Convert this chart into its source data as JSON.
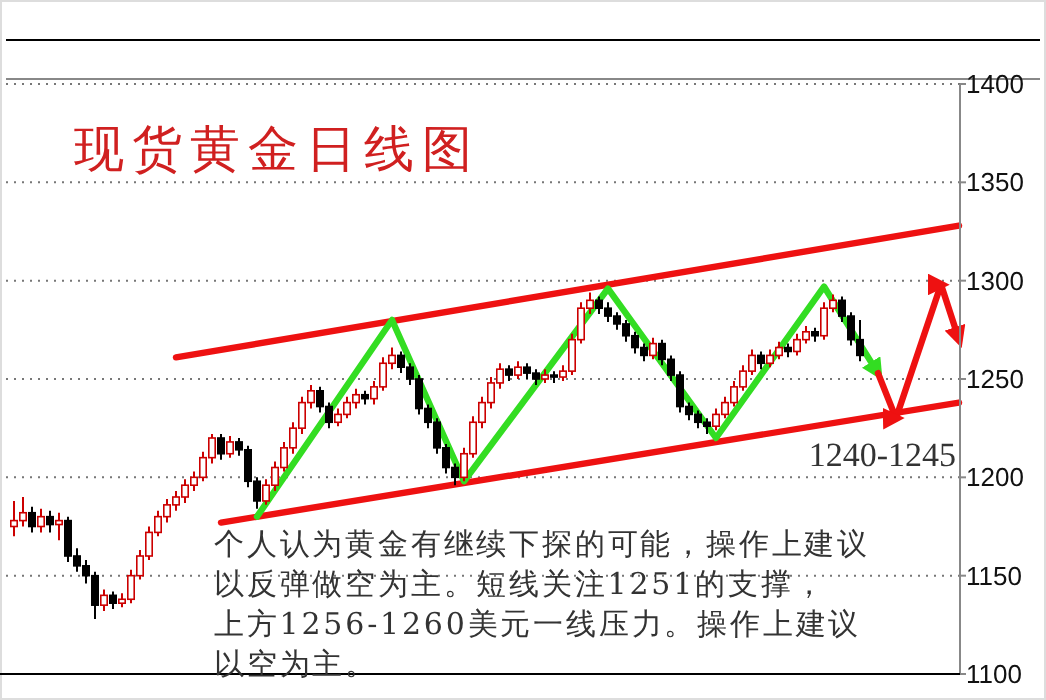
{
  "chart_data": {
    "type": "candlestick",
    "title": "现货黄金日线图",
    "annotations": [
      "1240-1245",
      "个人认为黄金有继续下探的可能，操作上建议",
      "以反弹做空为主。短线关注1251的支撑，",
      "上方1256-1260美元一线压力。操作上建议",
      "以空为主。"
    ],
    "categories": [
      null,
      null,
      null,
      null,
      null,
      null,
      null,
      null,
      null,
      null,
      null,
      null,
      null,
      null,
      null,
      null,
      null,
      null,
      null,
      null,
      null,
      null,
      null,
      null,
      null,
      null,
      null,
      null,
      null,
      null,
      null,
      null,
      null,
      null,
      null,
      null,
      null,
      null,
      null,
      null,
      null,
      null,
      null,
      null,
      null,
      null,
      null,
      null,
      null,
      null,
      null,
      null,
      null,
      null,
      null,
      null,
      null,
      null,
      null,
      null,
      null,
      null,
      null,
      null,
      null,
      null,
      null,
      null,
      null,
      null,
      null,
      null,
      null,
      null,
      null,
      null,
      null,
      null,
      null,
      null,
      null,
      null,
      null,
      null,
      null,
      null,
      null,
      null,
      null,
      null,
      null,
      null,
      null,
      null,
      null,
      null,
      null,
      null,
      null,
      null,
      null,
      null,
      null,
      null,
      null,
      null
    ],
    "ohlc": [
      [
        1175,
        1188,
        1170,
        1178
      ],
      [
        1178,
        1190,
        1175,
        1182
      ],
      [
        1182,
        1185,
        1172,
        1175
      ],
      [
        1175,
        1184,
        1172,
        1180
      ],
      [
        1180,
        1183,
        1172,
        1176
      ],
      [
        1176,
        1182,
        1168,
        1178
      ],
      [
        1178,
        1180,
        1157,
        1160
      ],
      [
        1160,
        1164,
        1152,
        1155
      ],
      [
        1155,
        1158,
        1146,
        1150
      ],
      [
        1150,
        1152,
        1128,
        1135
      ],
      [
        1135,
        1143,
        1132,
        1140
      ],
      [
        1140,
        1142,
        1133,
        1136
      ],
      [
        1136,
        1141,
        1134,
        1138
      ],
      [
        1138,
        1153,
        1136,
        1150
      ],
      [
        1150,
        1163,
        1148,
        1160
      ],
      [
        1160,
        1175,
        1158,
        1172
      ],
      [
        1172,
        1183,
        1170,
        1180
      ],
      [
        1180,
        1189,
        1177,
        1186
      ],
      [
        1186,
        1193,
        1183,
        1190
      ],
      [
        1190,
        1199,
        1187,
        1196
      ],
      [
        1196,
        1203,
        1193,
        1200
      ],
      [
        1200,
        1213,
        1198,
        1210
      ],
      [
        1210,
        1222,
        1207,
        1220
      ],
      [
        1220,
        1222,
        1209,
        1212
      ],
      [
        1212,
        1221,
        1210,
        1218
      ],
      [
        1218,
        1220,
        1211,
        1214
      ],
      [
        1214,
        1216,
        1195,
        1198
      ],
      [
        1198,
        1200,
        1184,
        1188
      ],
      [
        1188,
        1199,
        1186,
        1196
      ],
      [
        1196,
        1208,
        1193,
        1205
      ],
      [
        1205,
        1218,
        1203,
        1215
      ],
      [
        1215,
        1228,
        1212,
        1225
      ],
      [
        1225,
        1241,
        1222,
        1238
      ],
      [
        1238,
        1247,
        1235,
        1244
      ],
      [
        1244,
        1246,
        1233,
        1236
      ],
      [
        1236,
        1238,
        1225,
        1228
      ],
      [
        1228,
        1235,
        1226,
        1232
      ],
      [
        1232,
        1241,
        1230,
        1238
      ],
      [
        1238,
        1245,
        1235,
        1242
      ],
      [
        1242,
        1244,
        1237,
        1240
      ],
      [
        1240,
        1249,
        1237,
        1246
      ],
      [
        1246,
        1261,
        1244,
        1258
      ],
      [
        1258,
        1266,
        1255,
        1262
      ],
      [
        1262,
        1264,
        1253,
        1256
      ],
      [
        1256,
        1258,
        1247,
        1250
      ],
      [
        1250,
        1252,
        1232,
        1235
      ],
      [
        1235,
        1237,
        1225,
        1228
      ],
      [
        1228,
        1230,
        1212,
        1215
      ],
      [
        1215,
        1217,
        1202,
        1205
      ],
      [
        1205,
        1207,
        1196,
        1200
      ],
      [
        1200,
        1215,
        1198,
        1212
      ],
      [
        1212,
        1231,
        1210,
        1228
      ],
      [
        1228,
        1241,
        1225,
        1238
      ],
      [
        1238,
        1251,
        1235,
        1248
      ],
      [
        1248,
        1258,
        1245,
        1255
      ],
      [
        1255,
        1257,
        1249,
        1252
      ],
      [
        1252,
        1259,
        1250,
        1256
      ],
      [
        1256,
        1258,
        1250,
        1253
      ],
      [
        1253,
        1255,
        1247,
        1250
      ],
      [
        1250,
        1255,
        1248,
        1252
      ],
      [
        1252,
        1254,
        1248,
        1251
      ],
      [
        1251,
        1257,
        1249,
        1254
      ],
      [
        1254,
        1273,
        1252,
        1270
      ],
      [
        1270,
        1289,
        1268,
        1286
      ],
      [
        1286,
        1294,
        1283,
        1290
      ],
      [
        1290,
        1292,
        1283,
        1286
      ],
      [
        1286,
        1289,
        1279,
        1282
      ],
      [
        1282,
        1284,
        1275,
        1278
      ],
      [
        1278,
        1280,
        1269,
        1272
      ],
      [
        1272,
        1274,
        1263,
        1266
      ],
      [
        1266,
        1268,
        1259,
        1262
      ],
      [
        1262,
        1271,
        1260,
        1268
      ],
      [
        1268,
        1270,
        1257,
        1260
      ],
      [
        1260,
        1262,
        1249,
        1252
      ],
      [
        1252,
        1254,
        1233,
        1236
      ],
      [
        1236,
        1238,
        1229,
        1232
      ],
      [
        1232,
        1234,
        1225,
        1228
      ],
      [
        1228,
        1230,
        1222,
        1226
      ],
      [
        1226,
        1235,
        1224,
        1232
      ],
      [
        1232,
        1241,
        1230,
        1238
      ],
      [
        1238,
        1249,
        1236,
        1246
      ],
      [
        1246,
        1257,
        1244,
        1254
      ],
      [
        1254,
        1265,
        1252,
        1262
      ],
      [
        1262,
        1264,
        1255,
        1258
      ],
      [
        1258,
        1265,
        1256,
        1262
      ],
      [
        1262,
        1269,
        1260,
        1266
      ],
      [
        1266,
        1268,
        1261,
        1264
      ],
      [
        1264,
        1273,
        1262,
        1270
      ],
      [
        1270,
        1277,
        1268,
        1274
      ],
      [
        1274,
        1276,
        1269,
        1272
      ],
      [
        1272,
        1289,
        1270,
        1286
      ],
      [
        1286,
        1293,
        1284,
        1290
      ],
      [
        1290,
        1292,
        1279,
        1282
      ],
      [
        1282,
        1284,
        1267,
        1270
      ],
      [
        1270,
        1280,
        1259,
        1262
      ],
      null,
      null,
      null,
      null,
      null,
      null,
      null,
      null,
      null,
      null,
      null
    ],
    "series": [
      {
        "type": "line",
        "color": "#ee1111",
        "values": [
          null,
          null,
          null,
          null,
          null,
          null,
          null,
          null,
          null,
          null,
          null,
          null,
          null,
          null,
          null,
          null,
          null,
          null,
          1261,
          null,
          null,
          null,
          null,
          null,
          null,
          null,
          null,
          null,
          null,
          null,
          null,
          null,
          null,
          null,
          null,
          null,
          null,
          null,
          null,
          null,
          null,
          null,
          null,
          null,
          null,
          null,
          null,
          null,
          null,
          null,
          null,
          null,
          null,
          null,
          null,
          null,
          null,
          null,
          null,
          null,
          null,
          null,
          null,
          null,
          null,
          null,
          null,
          null,
          null,
          null,
          null,
          null,
          null,
          null,
          null,
          null,
          null,
          null,
          null,
          null,
          null,
          null,
          null,
          null,
          null,
          null,
          null,
          null,
          null,
          null,
          null,
          null,
          null,
          null,
          null,
          null,
          null,
          null,
          null,
          null,
          null,
          null,
          null,
          null,
          null,
          1328
        ]
      },
      {
        "type": "line",
        "color": "#ee1111",
        "values": [
          null,
          null,
          null,
          null,
          null,
          null,
          null,
          null,
          null,
          null,
          null,
          null,
          null,
          null,
          null,
          null,
          null,
          null,
          null,
          null,
          null,
          null,
          null,
          1177,
          null,
          null,
          null,
          null,
          null,
          null,
          null,
          null,
          null,
          null,
          null,
          null,
          null,
          null,
          null,
          null,
          null,
          null,
          null,
          null,
          null,
          null,
          null,
          null,
          null,
          null,
          null,
          null,
          null,
          null,
          null,
          null,
          null,
          null,
          null,
          null,
          null,
          null,
          null,
          null,
          null,
          null,
          null,
          null,
          null,
          null,
          null,
          null,
          null,
          null,
          null,
          null,
          null,
          null,
          null,
          null,
          null,
          null,
          null,
          null,
          null,
          null,
          null,
          null,
          null,
          null,
          null,
          null,
          null,
          null,
          null,
          null,
          null,
          null,
          null,
          null,
          null,
          null,
          null,
          null,
          null,
          1238
        ]
      },
      {
        "type": "line",
        "color": "#33dd22",
        "values": [
          null,
          null,
          null,
          null,
          null,
          null,
          null,
          null,
          null,
          null,
          null,
          null,
          null,
          null,
          null,
          null,
          null,
          null,
          null,
          null,
          null,
          null,
          null,
          null,
          null,
          null,
          null,
          1180,
          null,
          null,
          null,
          null,
          null,
          null,
          null,
          null,
          null,
          null,
          null,
          null,
          null,
          null,
          1280,
          null,
          null,
          null,
          null,
          null,
          null,
          null,
          1198,
          null,
          null,
          null,
          null,
          null,
          null,
          null,
          null,
          null,
          null,
          null,
          null,
          null,
          null,
          null,
          1296,
          null,
          null,
          null,
          null,
          null,
          null,
          null,
          null,
          null,
          null,
          null,
          1220,
          null,
          null,
          null,
          null,
          null,
          null,
          null,
          null,
          null,
          null,
          null,
          1297,
          null,
          null,
          null,
          null,
          null,
          1253,
          null,
          null,
          null,
          null,
          null,
          null,
          null,
          null,
          null
        ]
      },
      {
        "type": "line",
        "color": "#ee1111",
        "values": [
          null,
          null,
          null,
          null,
          null,
          null,
          null,
          null,
          null,
          null,
          null,
          null,
          null,
          null,
          null,
          null,
          null,
          null,
          null,
          null,
          null,
          null,
          null,
          null,
          null,
          null,
          null,
          null,
          null,
          null,
          null,
          null,
          null,
          null,
          null,
          null,
          null,
          null,
          null,
          null,
          null,
          null,
          null,
          null,
          null,
          null,
          null,
          null,
          null,
          null,
          null,
          null,
          null,
          null,
          null,
          null,
          null,
          null,
          null,
          null,
          null,
          null,
          null,
          null,
          null,
          null,
          null,
          null,
          null,
          null,
          null,
          null,
          null,
          null,
          null,
          null,
          null,
          null,
          null,
          null,
          null,
          null,
          null,
          null,
          null,
          null,
          null,
          null,
          null,
          null,
          null,
          null,
          null,
          null,
          null,
          null,
          1253,
          null,
          1230,
          null,
          null,
          null,
          null,
          1298,
          null,
          1270
        ]
      }
    ],
    "ylim": [
      1100,
      1400
    ],
    "yticks": [
      1100,
      1150,
      1200,
      1250,
      1300,
      1350,
      1400
    ],
    "grid": "y",
    "marker": "none",
    "line_style": "solid"
  }
}
